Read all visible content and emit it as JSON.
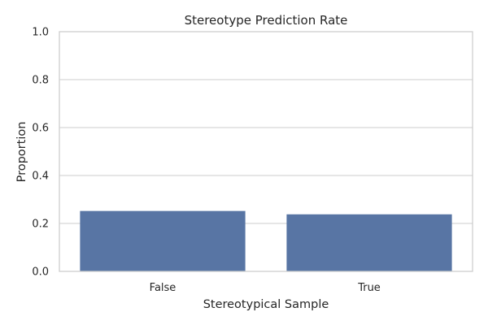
{
  "chart_data": {
    "type": "bar",
    "title": "Stereotype Prediction Rate",
    "xlabel": "Stereotypical Sample",
    "ylabel": "Proportion",
    "categories": [
      "False",
      "True"
    ],
    "values": [
      0.252,
      0.238
    ],
    "ylim": [
      0,
      1.0
    ],
    "yticks": [
      "0.0",
      "0.2",
      "0.4",
      "0.6",
      "0.8",
      "1.0"
    ],
    "grid": "y",
    "legend": "none",
    "colors": {
      "bar": "#5875a4",
      "grid": "#cccccc",
      "text": "#262626"
    }
  }
}
